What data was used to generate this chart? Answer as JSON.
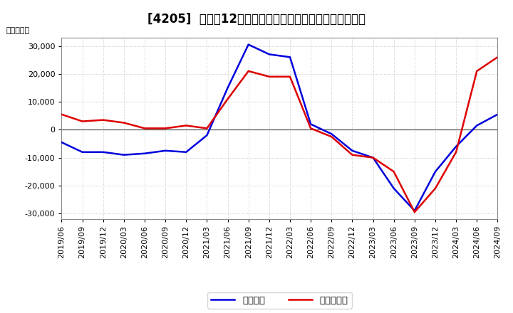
{
  "title": "[4205]  利益の12か月移動合計の対前年同期増減額の推移",
  "ylabel": "（百万円）",
  "ylim": [
    -32000,
    33000
  ],
  "yticks": [
    -30000,
    -20000,
    -10000,
    0,
    10000,
    20000,
    30000
  ],
  "legend_labels": [
    "経常利益",
    "当期純利益"
  ],
  "line_colors": [
    "#0000dd",
    "#dd0000"
  ],
  "dates": [
    "2019/06",
    "2019/09",
    "2019/12",
    "2020/03",
    "2020/06",
    "2020/09",
    "2020/12",
    "2021/03",
    "2021/06",
    "2021/09",
    "2021/12",
    "2022/03",
    "2022/06",
    "2022/09",
    "2022/12",
    "2023/03",
    "2023/06",
    "2023/09",
    "2023/12",
    "2024/03",
    "2024/06",
    "2024/09"
  ],
  "operating_profit": [
    -4500,
    -8000,
    -8000,
    -9000,
    -8500,
    -7500,
    -8000,
    -2000,
    15000,
    30500,
    27000,
    26000,
    2000,
    -1500,
    -7500,
    -10000,
    -21000,
    -29000,
    -15000,
    -6000,
    1500,
    5500
  ],
  "net_profit": [
    5500,
    3000,
    3500,
    2500,
    500,
    500,
    1500,
    500,
    11000,
    21000,
    19000,
    19000,
    500,
    -2500,
    -9000,
    -10000,
    -15000,
    -29500,
    -21000,
    -8000,
    21000,
    26000
  ],
  "background_color": "#ffffff",
  "plot_bg_color": "#f8f8f8",
  "grid_color": "#bbbbbb",
  "title_fontsize": 12,
  "tick_fontsize": 8
}
